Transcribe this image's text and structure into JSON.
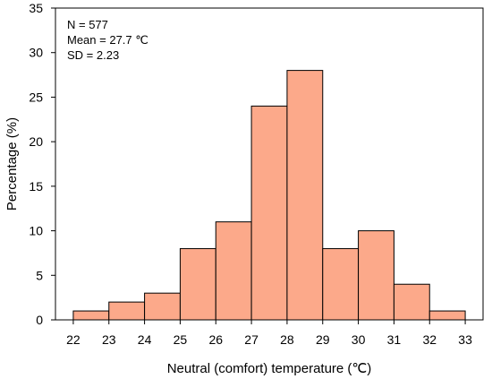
{
  "chart_data": {
    "type": "bar",
    "bin_edges": [
      22,
      23,
      24,
      25,
      26,
      27,
      28,
      29,
      30,
      31,
      32,
      33
    ],
    "values": [
      1,
      2,
      3,
      8,
      11,
      24,
      28,
      8,
      10,
      4,
      1
    ],
    "xlabel": "Neutral (comfort) temperature (℃)",
    "ylabel": "Percentage (%)",
    "xlim": [
      21.5,
      33.5
    ],
    "ylim": [
      0,
      35
    ],
    "xticks": [
      "22",
      "23",
      "24",
      "25",
      "26",
      "27",
      "28",
      "29",
      "30",
      "31",
      "32",
      "33"
    ],
    "yticks": [
      "0",
      "5",
      "10",
      "15",
      "20",
      "25",
      "30",
      "35"
    ],
    "annotations": [
      "N = 577",
      "Mean = 27.7 ℃",
      "SD = 2.23"
    ],
    "bar_color": "#fca98a",
    "grid": false,
    "legend": "none"
  }
}
